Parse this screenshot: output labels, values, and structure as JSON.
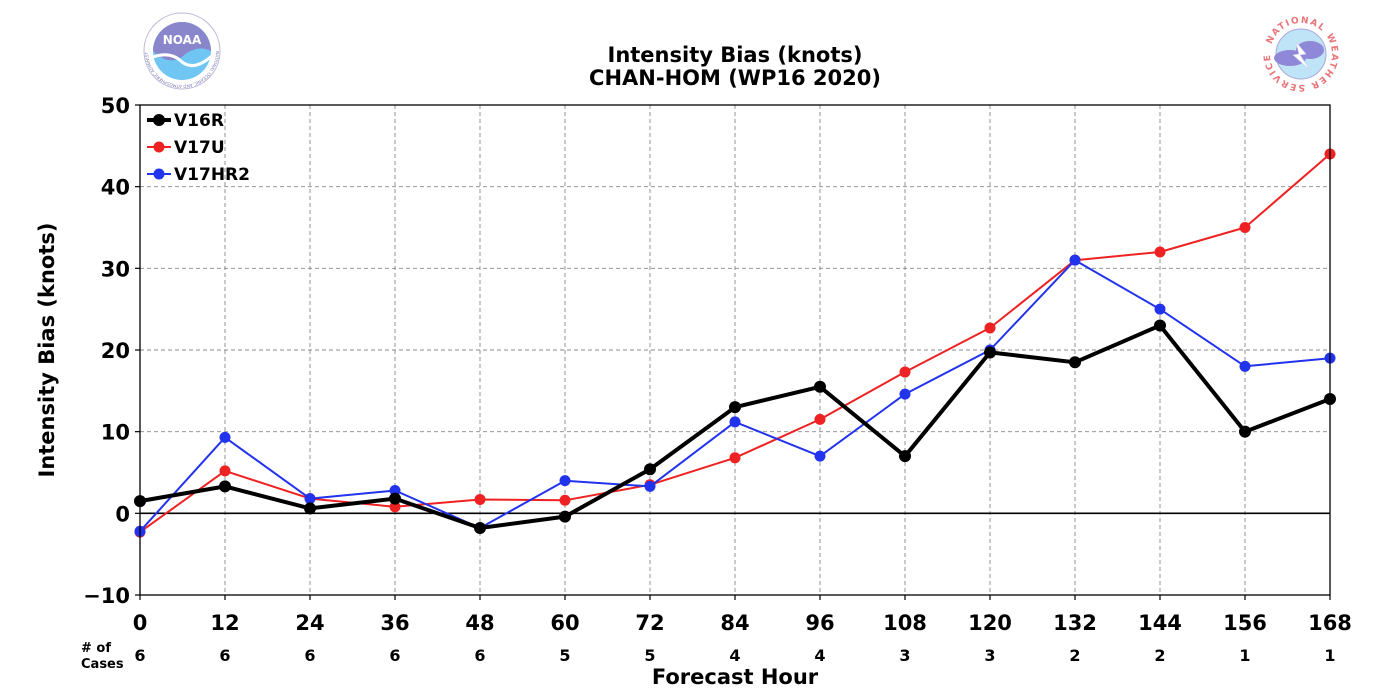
{
  "chart_data": {
    "type": "line",
    "title": "Intensity Bias (knots)",
    "subtitle": "CHAN-HOM (WP16 2020)",
    "xlabel": "Forecast Hour",
    "ylabel": "Intensity Bias (knots)",
    "x": [
      0,
      12,
      24,
      36,
      48,
      60,
      72,
      84,
      96,
      108,
      120,
      132,
      144,
      156,
      168
    ],
    "xlim": [
      0,
      168
    ],
    "ylim": [
      -10,
      50
    ],
    "yticks": [
      -10,
      0,
      10,
      20,
      30,
      40,
      50
    ],
    "ytick_labels": [
      "−10",
      "0",
      "10",
      "20",
      "30",
      "40",
      "50"
    ],
    "grid": true,
    "legend_position": "top-left",
    "series": [
      {
        "name": "V16R",
        "color": "#000000",
        "values": [
          1.5,
          3.3,
          0.6,
          1.8,
          -1.8,
          -0.4,
          5.4,
          13.0,
          15.5,
          7.0,
          19.7,
          18.5,
          23.0,
          10.0,
          14.0
        ]
      },
      {
        "name": "V17U",
        "color": "#ee2222",
        "values": [
          -2.3,
          5.2,
          1.8,
          0.8,
          1.7,
          1.6,
          3.5,
          6.8,
          11.5,
          17.3,
          22.7,
          31.0,
          32.0,
          35.0,
          44.0
        ]
      },
      {
        "name": "V17HR2",
        "color": "#2233ee",
        "values": [
          -2.2,
          9.3,
          1.8,
          2.8,
          -1.8,
          4.0,
          3.3,
          11.2,
          7.0,
          14.6,
          20.0,
          31.0,
          25.0,
          18.0,
          19.0
        ]
      }
    ],
    "cases_label": "# of\nCases",
    "cases_label_lines": [
      "# of",
      "Cases"
    ],
    "cases": [
      6,
      6,
      6,
      6,
      6,
      5,
      5,
      4,
      4,
      3,
      3,
      2,
      2,
      1,
      1
    ]
  },
  "logos": {
    "left": {
      "name": "NOAA",
      "text": "NOAA",
      "ring_text": "NATIONAL OCEANIC AND ATMOSPHERIC ADMINISTRATION · U.S. DEPARTMENT OF COMMERCE"
    },
    "right": {
      "name": "National Weather Service",
      "ring_text": "NATIONAL WEATHER SERVICE"
    }
  }
}
